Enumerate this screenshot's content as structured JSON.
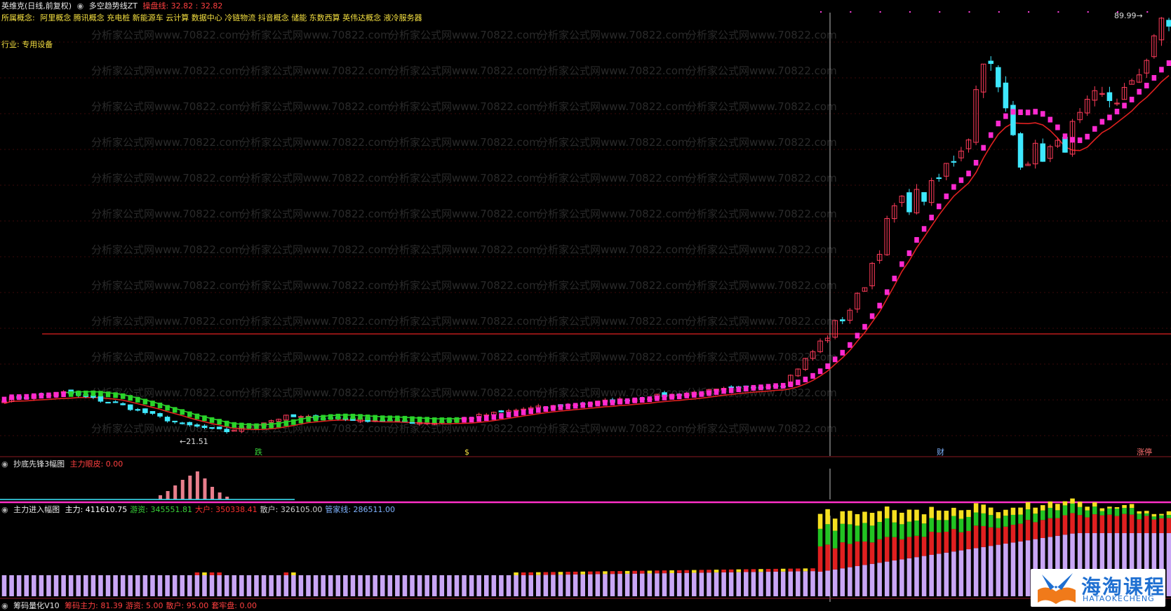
{
  "header": {
    "stock_title": "英维克(日线,前复权)",
    "indicator_name": "多空趋势线ZT",
    "indicator_value": "操盘线: 32.82 : 32.82",
    "concepts_label": "所属概念:",
    "concepts": "阿里概念 腾讯概念 充电桩 新能源车 云计算 数据中心 冷链物流 抖音概念 储能 东数西算 英伟达概念 液冷服务器",
    "industry": "行业: 专用设备"
  },
  "watermark_text": "分析家公式网www.70822.com",
  "main_chart": {
    "high_label": "89.99",
    "low_label": "←21.51",
    "markers": [
      "跌",
      "$",
      "财",
      "涨停"
    ]
  },
  "sub1": {
    "title": "抄底先锋3幅图",
    "value_label": "主力眼皮: 0.00"
  },
  "sub2": {
    "title": "主力进入幅图",
    "items": [
      {
        "label": "主力: 411610.75",
        "color": "#ffffff"
      },
      {
        "label": "游资: 345551.81",
        "color": "#39d439"
      },
      {
        "label": "大户: 350338.41",
        "color": "#ff3030"
      },
      {
        "label": "散户: 326105.00",
        "color": "#cfcfcf"
      },
      {
        "label": "管家线: 286511.00",
        "color": "#7fb3ff"
      }
    ]
  },
  "footer": {
    "title": "筹码量化V10",
    "items": [
      "筹码主力: 81.39",
      "游资: 5.00",
      "散户: 95.00",
      "套牢盘: 0.00"
    ]
  },
  "logo": {
    "main": "海淘课程",
    "sub": "HATAOKECHENG"
  },
  "chart_data": {
    "type": "candlestick",
    "start_price": 27.5,
    "anchors": [
      [
        0,
        27.5
      ],
      [
        8,
        28.6
      ],
      [
        15,
        26.8
      ],
      [
        24,
        23.2
      ],
      [
        30,
        22.0
      ],
      [
        38,
        24.5
      ],
      [
        48,
        24.0
      ],
      [
        58,
        23.5
      ],
      [
        70,
        25.8
      ],
      [
        82,
        27.2
      ],
      [
        92,
        28.5
      ],
      [
        100,
        29.4
      ],
      [
        105,
        30.1
      ],
      [
        110,
        37.0
      ],
      [
        115,
        44.5
      ],
      [
        120,
        60.0
      ],
      [
        125,
        63.0
      ],
      [
        130,
        73.0
      ],
      [
        132,
        87.0
      ],
      [
        137,
        69.0
      ],
      [
        142,
        70.0
      ],
      [
        147,
        78.0
      ],
      [
        152,
        80.0
      ],
      [
        155,
        89.99
      ]
    ],
    "colors": {
      "up": "#ff3b5a",
      "down": "#3ee8ff",
      "trend_up": "#ff2ad0",
      "trend_down": "#2ad42a",
      "ma": "#e02020",
      "level": "#e02020"
    }
  }
}
